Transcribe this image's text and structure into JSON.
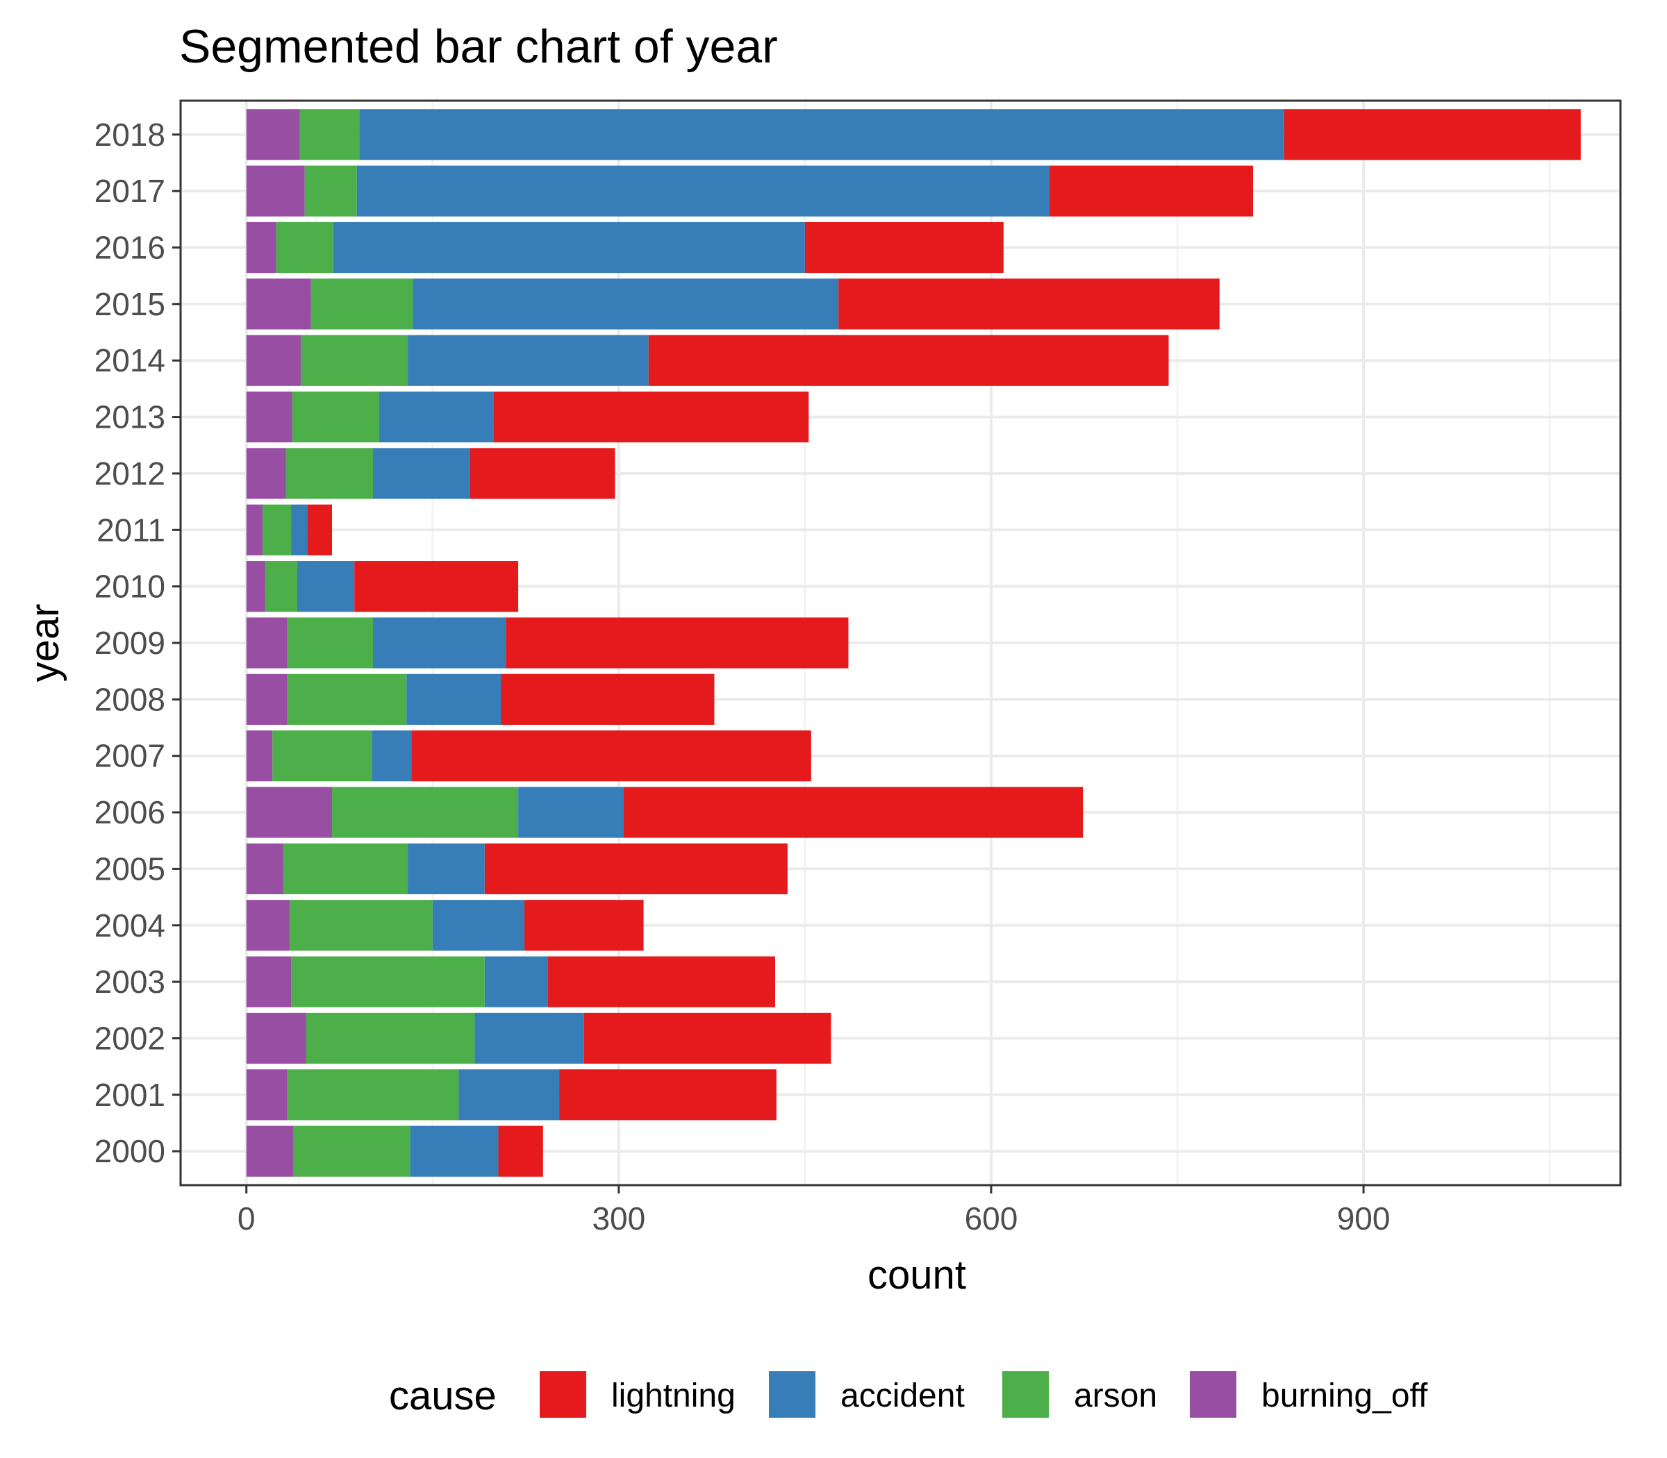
{
  "chart_data": {
    "type": "bar",
    "orientation": "horizontal",
    "stacked": true,
    "title": "Segmented bar chart of year",
    "xlabel": "count",
    "ylabel": "year",
    "xlim": [
      -53,
      1107
    ],
    "x_ticks": [
      0,
      300,
      600,
      900
    ],
    "categories": [
      "2000",
      "2001",
      "2002",
      "2003",
      "2004",
      "2005",
      "2006",
      "2007",
      "2008",
      "2009",
      "2010",
      "2011",
      "2012",
      "2013",
      "2014",
      "2015",
      "2016",
      "2017",
      "2018"
    ],
    "series": [
      {
        "name": "burning_off",
        "color": "#984EA3",
        "values": [
          38,
          33,
          48,
          36,
          35,
          30,
          69,
          21,
          33,
          33,
          15,
          13,
          32,
          37,
          44,
          52,
          24,
          47,
          43
        ]
      },
      {
        "name": "arson",
        "color": "#4DAF4A",
        "values": [
          94,
          138,
          136,
          156,
          115,
          100,
          150,
          80,
          96,
          69,
          26,
          23,
          70,
          70,
          86,
          82,
          46,
          42,
          48
        ]
      },
      {
        "name": "accident",
        "color": "#377EB8",
        "values": [
          71,
          81,
          88,
          51,
          74,
          62,
          85,
          32,
          76,
          107,
          46,
          13,
          78,
          92,
          194,
          343,
          380,
          558,
          745
        ]
      },
      {
        "name": "lightning",
        "color": "#E41A1C",
        "values": [
          36,
          175,
          199,
          183,
          96,
          244,
          370,
          322,
          172,
          276,
          132,
          20,
          117,
          254,
          419,
          307,
          160,
          164,
          239
        ]
      }
    ],
    "legend": {
      "title": "cause",
      "position": "bottom",
      "items": [
        "lightning",
        "accident",
        "arson",
        "burning_off"
      ]
    },
    "grid": true,
    "theme": "bw"
  }
}
